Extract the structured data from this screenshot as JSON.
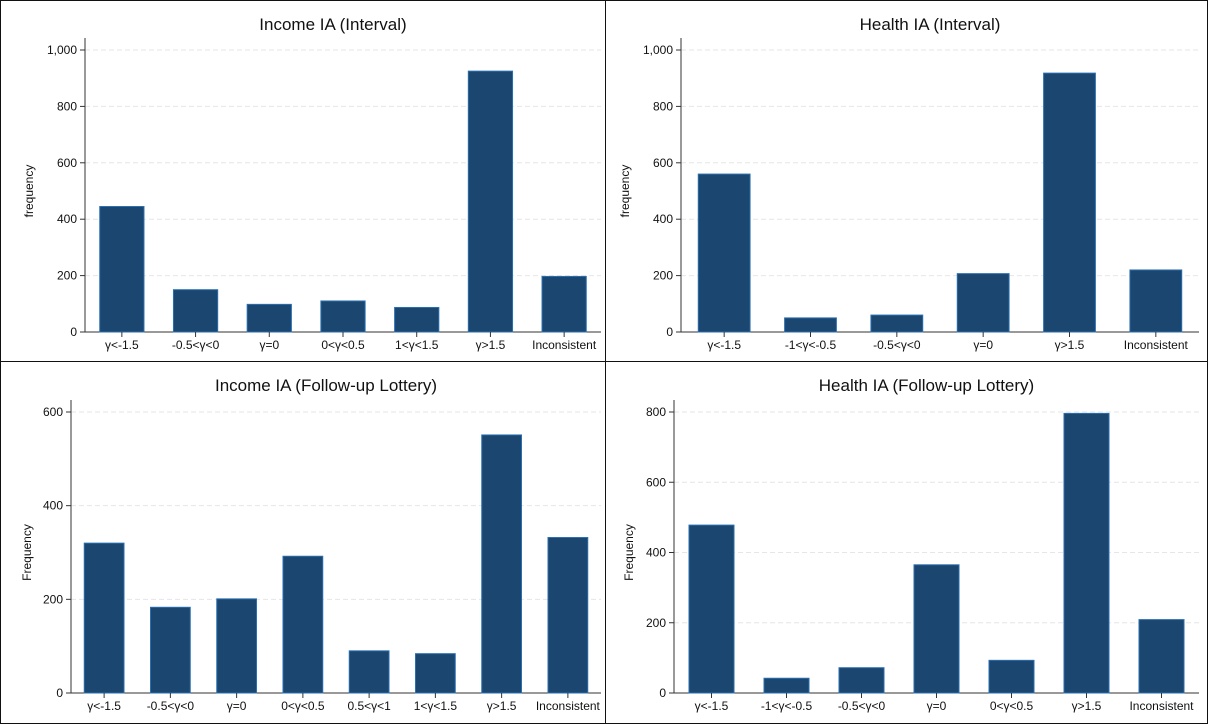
{
  "chart_data": [
    {
      "type": "bar",
      "title": "Income IA (Interval)",
      "ylabel": "frequency",
      "categories": [
        "γ<-1.5",
        "-0.5<γ<0",
        "γ=0",
        "0<γ<0.5",
        "1<γ<1.5",
        "γ>1.5",
        "Inconsistent"
      ],
      "values": [
        445,
        150,
        98,
        110,
        87,
        925,
        197
      ],
      "ylim": [
        0,
        1000
      ],
      "yticks": [
        0,
        200,
        400,
        600,
        800,
        1000
      ],
      "ytick_labels": [
        "0",
        "200",
        "400",
        "600",
        "800",
        "1,000"
      ],
      "bar_color": "#1b4670",
      "grid": "dashed horizontal"
    },
    {
      "type": "bar",
      "title": "Health IA (Interval)",
      "ylabel": "frequency",
      "categories": [
        "γ<-1.5",
        "-1<γ<-0.5",
        "-0.5<γ<0",
        "γ=0",
        "γ>1.5",
        "Inconsistent"
      ],
      "values": [
        560,
        50,
        60,
        207,
        918,
        220
      ],
      "ylim": [
        0,
        1000
      ],
      "yticks": [
        0,
        200,
        400,
        600,
        800,
        1000
      ],
      "ytick_labels": [
        "0",
        "200",
        "400",
        "600",
        "800",
        "1,000"
      ],
      "bar_color": "#1b4670",
      "grid": "dashed horizontal"
    },
    {
      "type": "bar",
      "title": "Income IA (Follow-up Lottery)",
      "ylabel": "Frequency",
      "categories": [
        "γ<-1.5",
        "-0.5<γ<0",
        "γ=0",
        "0<γ<0.5",
        "0.5<γ<1",
        "1<γ<1.5",
        "γ>1.5",
        "Inconsistent"
      ],
      "values": [
        320,
        183,
        201,
        292,
        90,
        84,
        551,
        332
      ],
      "ylim": [
        0,
        600
      ],
      "yticks": [
        0,
        200,
        400,
        600
      ],
      "ytick_labels": [
        "0",
        "200",
        "400",
        "600"
      ],
      "bar_color": "#1b4670",
      "grid": "dashed horizontal"
    },
    {
      "type": "bar",
      "title": "Health IA (Follow-up Lottery)",
      "ylabel": "Frequency",
      "categories": [
        "γ<-1.5",
        "-1<γ<-0.5",
        "-0.5<γ<0",
        "γ=0",
        "0<γ<0.5",
        "γ>1.5",
        "Inconsistent"
      ],
      "values": [
        478,
        42,
        72,
        365,
        93,
        796,
        209
      ],
      "ylim": [
        0,
        800
      ],
      "yticks": [
        0,
        200,
        400,
        600,
        800
      ],
      "ytick_labels": [
        "0",
        "200",
        "400",
        "600",
        "800"
      ],
      "bar_color": "#1b4670",
      "grid": "dashed horizontal"
    }
  ]
}
